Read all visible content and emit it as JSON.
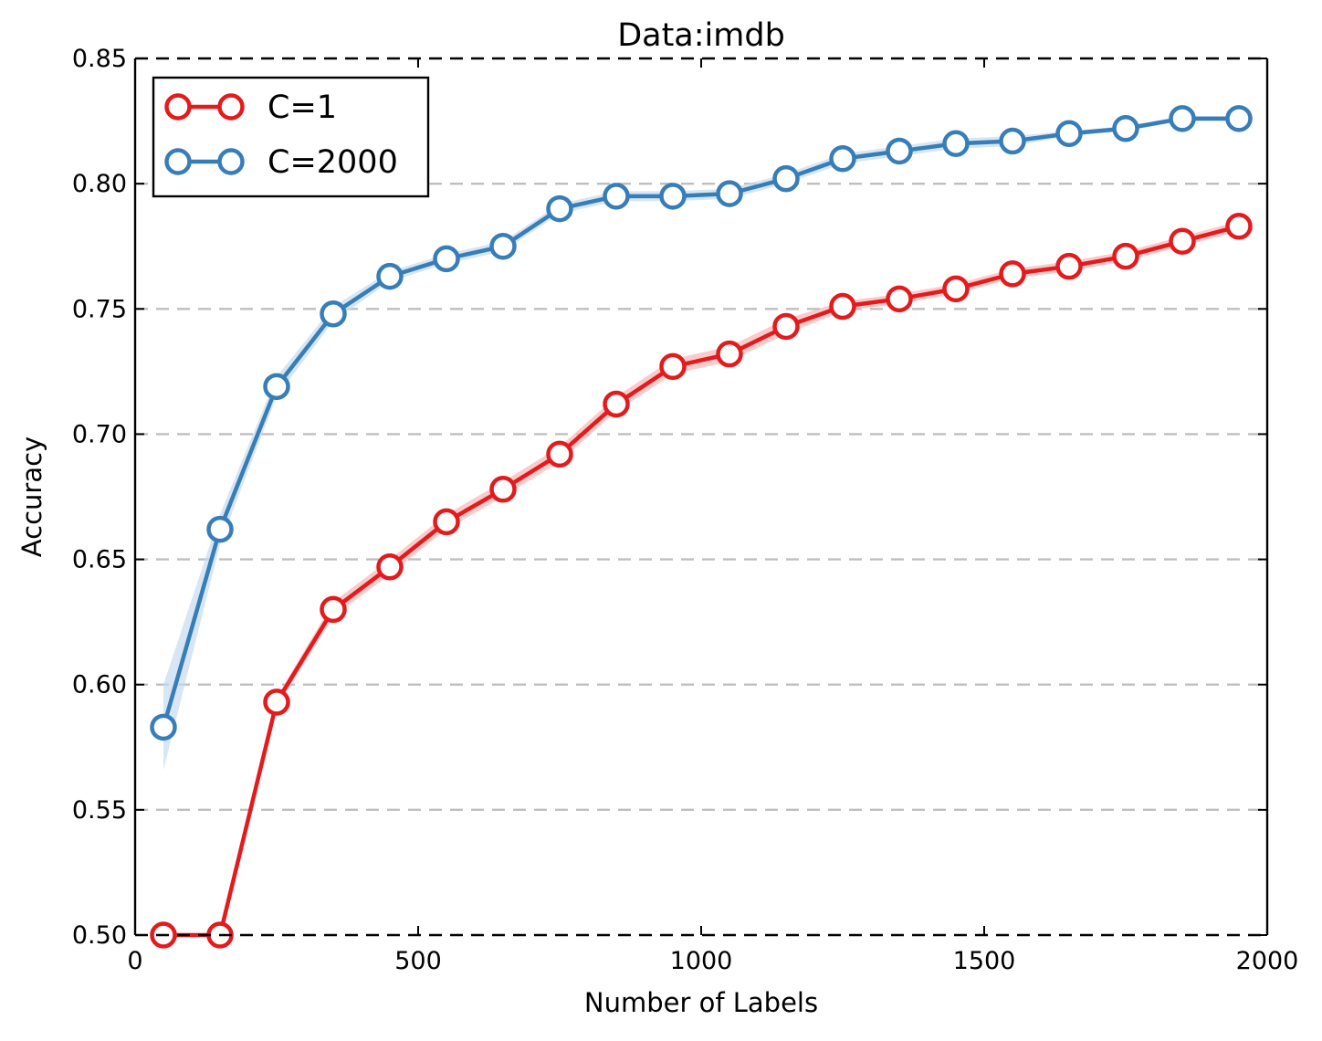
{
  "chart_data": {
    "type": "line",
    "title": "Data:imdb",
    "xlabel": "Number of Labels",
    "ylabel": "Accuracy",
    "xlim": [
      0,
      2000
    ],
    "ylim": [
      0.5,
      0.85
    ],
    "xticks": [
      0,
      500,
      1000,
      1500,
      2000
    ],
    "xtick_labels": [
      "0",
      "500",
      "1000",
      "1500",
      "2000"
    ],
    "yticks": [
      0.5,
      0.55,
      0.6,
      0.65,
      0.7,
      0.75,
      0.8,
      0.85
    ],
    "ytick_labels": [
      "0.50",
      "0.55",
      "0.60",
      "0.65",
      "0.70",
      "0.75",
      "0.80",
      "0.85"
    ],
    "grid": "horizontal dashed",
    "legend_position": "top-left",
    "x": [
      50,
      150,
      250,
      350,
      450,
      550,
      650,
      750,
      850,
      950,
      1050,
      1150,
      1250,
      1350,
      1450,
      1550,
      1650,
      1750,
      1850,
      1950
    ],
    "series": [
      {
        "name": "C=1",
        "color": "#e41a1c",
        "band_color": "#f7b6b7",
        "values": [
          0.5,
          0.5,
          0.593,
          0.63,
          0.647,
          0.665,
          0.678,
          0.692,
          0.712,
          0.727,
          0.732,
          0.743,
          0.751,
          0.754,
          0.758,
          0.764,
          0.767,
          0.771,
          0.777,
          0.783
        ],
        "band": [
          0.0,
          0.0,
          0.002,
          0.003,
          0.003,
          0.003,
          0.003,
          0.003,
          0.003,
          0.003,
          0.003,
          0.003,
          0.002,
          0.002,
          0.002,
          0.002,
          0.002,
          0.002,
          0.002,
          0.002
        ]
      },
      {
        "name": "C=2000",
        "color": "#377eb8",
        "band_color": "#c6dcf0",
        "values": [
          0.583,
          0.662,
          0.719,
          0.748,
          0.763,
          0.77,
          0.775,
          0.79,
          0.795,
          0.795,
          0.796,
          0.802,
          0.81,
          0.813,
          0.816,
          0.817,
          0.82,
          0.822,
          0.826,
          0.826
        ],
        "band": [
          0.017,
          0.006,
          0.004,
          0.003,
          0.002,
          0.002,
          0.002,
          0.002,
          0.002,
          0.002,
          0.002,
          0.002,
          0.002,
          0.002,
          0.002,
          0.002,
          0.001,
          0.001,
          0.001,
          0.001
        ]
      }
    ]
  }
}
